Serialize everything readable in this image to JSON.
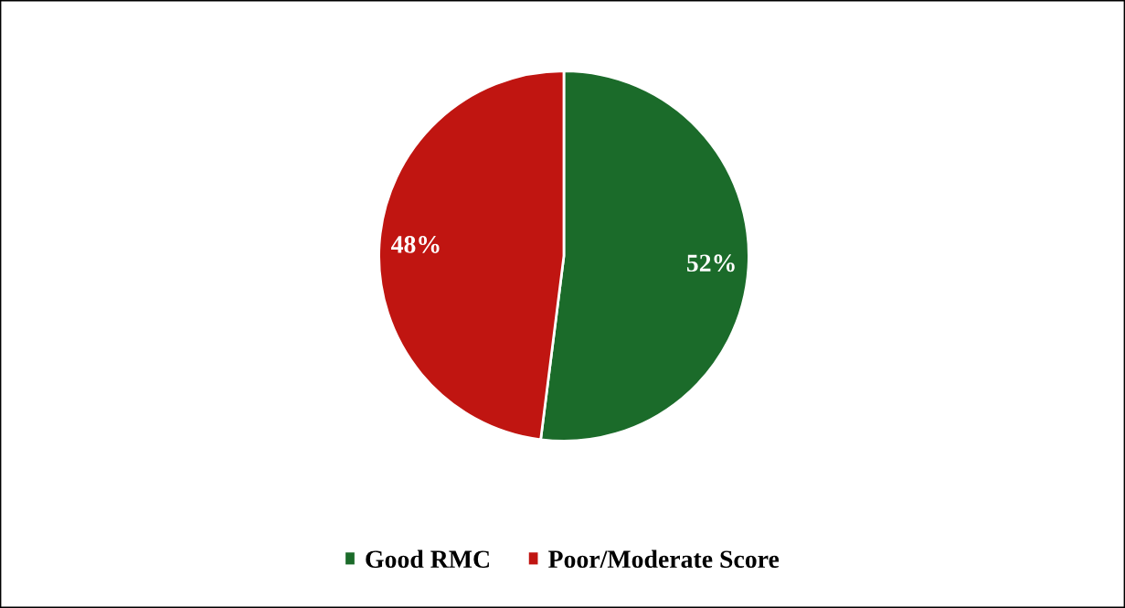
{
  "chart_data": {
    "type": "pie",
    "categories": [
      "Good RMC",
      "Poor/Moderate Score"
    ],
    "values": [
      52,
      48
    ],
    "colors": [
      "#1b6b2a",
      "#c01511"
    ],
    "value_labels": [
      "52%",
      "48%"
    ],
    "legend": "bottom"
  }
}
